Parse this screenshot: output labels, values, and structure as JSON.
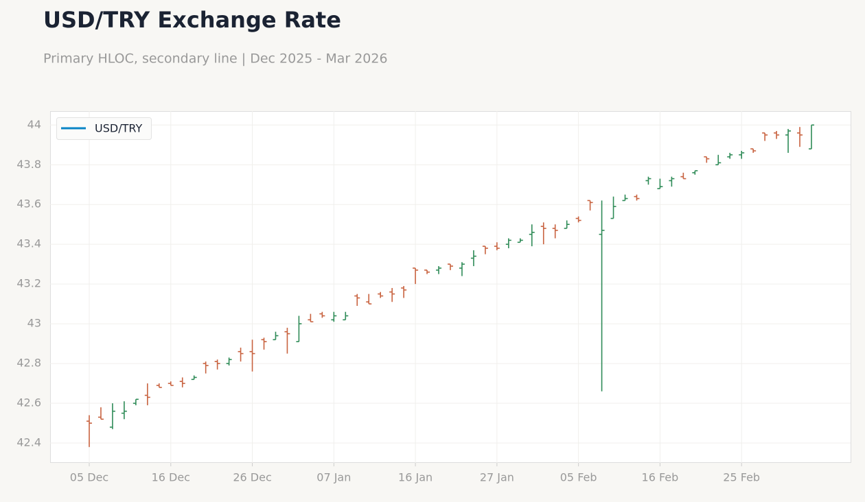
{
  "chart_data": {
    "type": "ohlc",
    "title": "USD/TRY Exchange Rate",
    "subtitle": "Primary HLOC, secondary line | Dec 2025 - Mar 2026",
    "categories": [
      "05 Dec",
      null,
      null,
      null,
      null,
      null,
      null,
      "16 Dec",
      null,
      null,
      null,
      null,
      null,
      null,
      "26 Dec",
      null,
      null,
      null,
      null,
      null,
      null,
      "07 Jan",
      null,
      null,
      null,
      null,
      null,
      null,
      "16 Jan",
      null,
      null,
      null,
      null,
      null,
      null,
      "27 Jan",
      null,
      null,
      null,
      null,
      null,
      null,
      "05 Feb",
      null,
      null,
      null,
      null,
      null,
      null,
      "16 Feb",
      null,
      null,
      null,
      null,
      null,
      null,
      "25 Feb",
      null,
      null,
      null,
      null,
      null,
      null
    ],
    "open": [
      42.51,
      42.53,
      42.48,
      42.55,
      42.6,
      42.64,
      42.69,
      42.7,
      42.71,
      42.72,
      42.8,
      42.81,
      42.8,
      42.86,
      42.86,
      42.92,
      42.92,
      42.96,
      42.91,
      43.02,
      43.05,
      43.02,
      43.02,
      43.14,
      43.11,
      43.15,
      43.16,
      43.18,
      43.28,
      43.27,
      43.27,
      43.3,
      43.28,
      43.33,
      43.39,
      43.39,
      43.4,
      43.41,
      43.45,
      43.49,
      43.48,
      43.48,
      43.53,
      43.62,
      43.45,
      43.53,
      43.62,
      43.64,
      43.72,
      43.68,
      43.72,
      43.74,
      43.76,
      43.84,
      43.8,
      43.84,
      43.85,
      43.88,
      43.96,
      43.96,
      43.95,
      43.96,
      43.88
    ],
    "high": [
      42.54,
      42.58,
      42.6,
      42.61,
      42.62,
      42.7,
      42.7,
      42.71,
      42.73,
      42.74,
      42.81,
      42.82,
      42.83,
      42.88,
      42.92,
      42.93,
      42.96,
      42.98,
      43.04,
      43.05,
      43.06,
      43.06,
      43.06,
      43.15,
      43.15,
      43.16,
      43.18,
      43.19,
      43.28,
      43.27,
      43.29,
      43.3,
      43.31,
      43.37,
      43.39,
      43.41,
      43.43,
      43.43,
      43.5,
      43.51,
      43.5,
      43.52,
      43.54,
      43.62,
      43.62,
      43.64,
      43.65,
      43.65,
      43.74,
      43.73,
      43.74,
      43.76,
      43.77,
      43.84,
      43.85,
      43.86,
      43.87,
      43.88,
      43.96,
      43.97,
      43.98,
      43.99,
      44.0
    ],
    "low": [
      42.38,
      42.52,
      42.47,
      42.52,
      42.59,
      42.59,
      42.68,
      42.69,
      42.68,
      42.72,
      42.75,
      42.77,
      42.79,
      42.81,
      42.76,
      42.87,
      42.92,
      42.85,
      42.91,
      43.01,
      43.03,
      43.01,
      43.02,
      43.09,
      43.1,
      43.13,
      43.11,
      43.13,
      43.2,
      43.25,
      43.25,
      43.27,
      43.24,
      43.29,
      43.35,
      43.37,
      43.38,
      43.41,
      43.39,
      43.4,
      43.43,
      43.48,
      43.51,
      43.57,
      42.66,
      43.53,
      43.62,
      43.62,
      43.7,
      43.68,
      43.69,
      43.73,
      43.75,
      43.81,
      43.8,
      43.83,
      43.83,
      43.86,
      43.92,
      43.93,
      43.86,
      43.89,
      43.88
    ],
    "close": [
      42.5,
      42.52,
      42.56,
      42.56,
      42.62,
      42.63,
      42.68,
      42.69,
      42.7,
      42.73,
      42.79,
      42.8,
      42.82,
      42.85,
      42.85,
      42.91,
      42.94,
      42.95,
      43.0,
      43.01,
      43.04,
      43.04,
      43.04,
      43.13,
      43.1,
      43.14,
      43.15,
      43.17,
      43.27,
      43.26,
      43.28,
      43.29,
      43.3,
      43.34,
      43.38,
      43.38,
      43.42,
      43.42,
      43.46,
      43.48,
      43.47,
      43.5,
      43.52,
      43.61,
      43.47,
      43.59,
      43.63,
      43.63,
      43.73,
      43.69,
      43.73,
      43.73,
      43.77,
      43.83,
      43.81,
      43.85,
      43.86,
      43.87,
      43.95,
      43.95,
      43.97,
      43.95,
      44.0
    ],
    "up_color": "#2e8b57",
    "down_color": "#c8623f",
    "legend": {
      "name": "USD/TRY",
      "color": "#0a84c6",
      "position": "upper left"
    },
    "ylim": [
      42.3,
      44.07
    ],
    "yticks": [
      42.4,
      42.6,
      42.8,
      43,
      43.2,
      43.4,
      43.6,
      43.8,
      44
    ],
    "grid": true
  }
}
